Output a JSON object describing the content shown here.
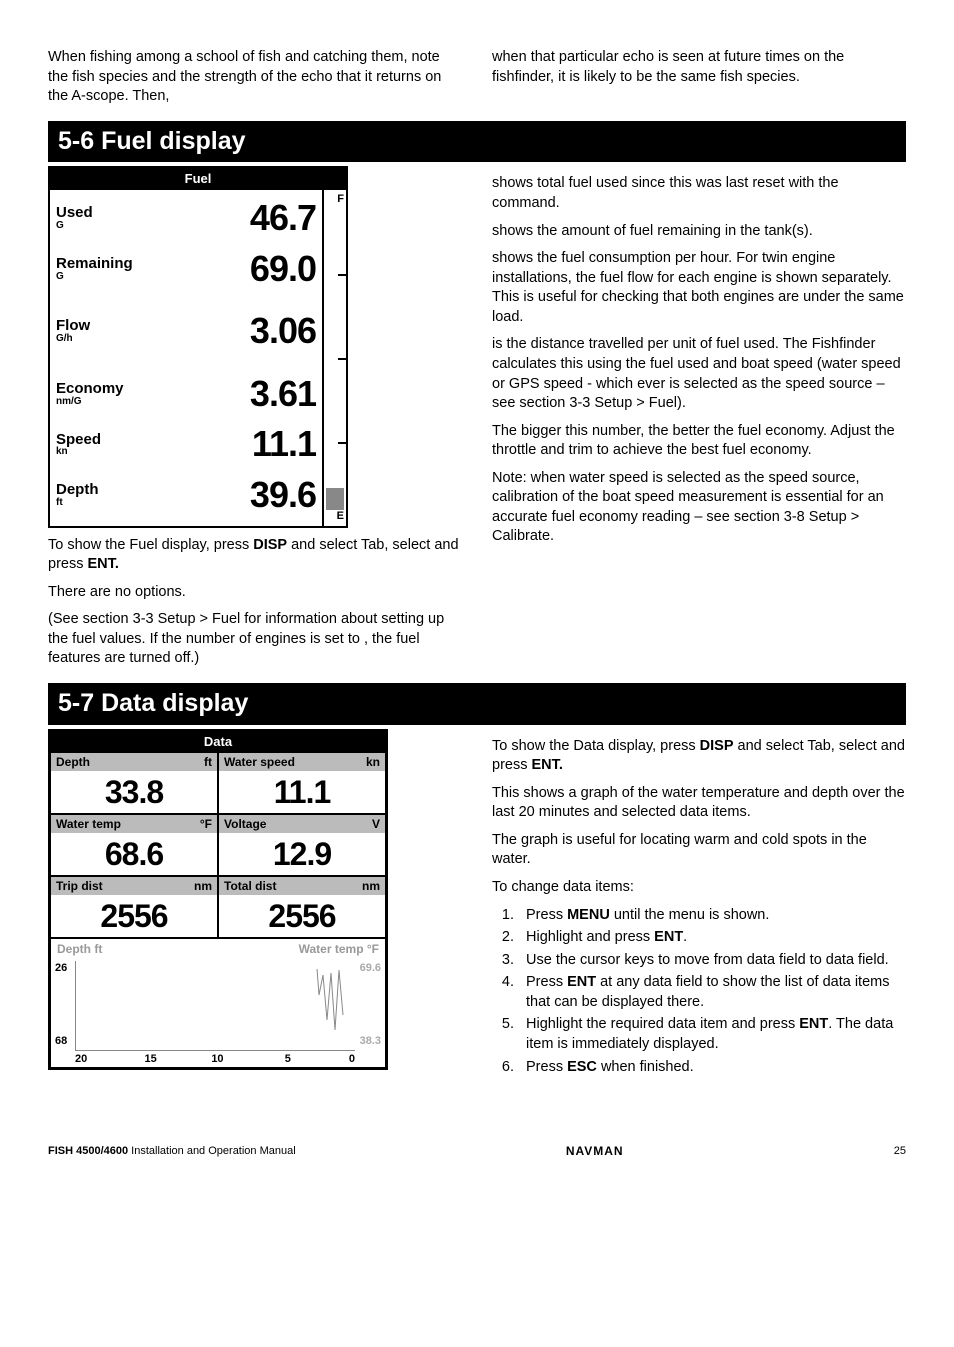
{
  "intro": {
    "left": "When fishing among a school of fish and catching them, note the fish species and the strength of the echo that it returns on the A-scope. Then,",
    "right": "when that particular echo is seen at future times on the fishfinder, it is likely to be the same fish species."
  },
  "section56": {
    "title": "5-6 Fuel display",
    "lcd_title": "Fuel",
    "rows": [
      {
        "label": "Used",
        "unit": "G",
        "value": "46.7"
      },
      {
        "label": "Remaining",
        "unit": "G",
        "value": "69.0"
      },
      {
        "label": "Flow",
        "unit": "G/h",
        "value": "3.06"
      },
      {
        "label": "Economy",
        "unit": "nm/G",
        "value": "3.61"
      },
      {
        "label": "Speed",
        "unit": "kn",
        "value": "11.1"
      },
      {
        "label": "Depth",
        "unit": "ft",
        "value": "39.6"
      }
    ],
    "bar": {
      "top": "F",
      "bottom": "E"
    },
    "left_p1a": "To show the Fuel display, press ",
    "left_p1b": " and select Tab, select and press ",
    "left_p2": "There are no options.",
    "left_p3": "(See section 3-3 Setup > Fuel for information about setting up the fuel values. If the number of engines is set to , the fuel features are turned off.)",
    "disp": "DISP",
    "ent": "ENT.",
    "right_p1": " shows total fuel used since this was last reset with the command.",
    "right_p2": " shows the amount of fuel remaining in the tank(s).",
    "right_p3": " shows the fuel consumption per hour. For twin engine installations, the fuel flow for each engine is shown separately. This is useful for checking that both engines are under the same load.",
    "right_p4": " is the distance travelled per unit of fuel used. The Fishfinder calculates this using the fuel used and boat speed (water speed or GPS speed - which ever is selected as the speed source – see section 3-3 Setup > Fuel).",
    "right_p5": "The bigger this number, the better the fuel economy. Adjust the throttle and trim to achieve the best fuel economy.",
    "right_p6": "Note: when water speed is selected as the speed source, calibration of the boat speed measurement is essential for an accurate fuel economy reading – see section 3-8 Setup > Calibrate."
  },
  "section57": {
    "title": "5-7  Data display",
    "lcd_title": "Data",
    "cells": [
      {
        "label": "Depth",
        "unit": "ft",
        "value": "33.8"
      },
      {
        "label": "Water speed",
        "unit": "kn",
        "value": "11.1"
      },
      {
        "label": "Water temp",
        "unit": "°F",
        "value": "68.6"
      },
      {
        "label": "Voltage",
        "unit": "V",
        "value": "12.9"
      },
      {
        "label": "Trip dist",
        "unit": "nm",
        "value": "2556"
      },
      {
        "label": "Total dist",
        "unit": "nm",
        "value": "2556"
      }
    ],
    "graph": {
      "left_label": "Depth ft",
      "right_label": "Water temp °F",
      "y_left": [
        "26",
        "68"
      ],
      "y_right": [
        "69.6",
        "38.3"
      ],
      "x": [
        "20",
        "15",
        "10",
        "5",
        "0"
      ]
    },
    "right_p1a": "To show the Data display, press ",
    "right_p1b": " and select Tab, select and press ",
    "right_p2": "This shows a graph of the water temperature and depth over the last 20 minutes and selected data items.",
    "right_p3": "The graph is useful for locating warm and cold spots in the water.",
    "right_p4": "To change data items:",
    "steps": [
      {
        "pre": "Press ",
        "b": "MENU",
        "post": " until the menu is shown."
      },
      {
        "pre": "Highlight and press ",
        "b": "ENT",
        "post": "."
      },
      {
        "pre": "Use the cursor keys to move from data field to data field.",
        "b": "",
        "post": ""
      },
      {
        "pre": "Press ",
        "b": "ENT",
        "post": " at any data field to show the list of data items that can be displayed there."
      },
      {
        "pre": "Highlight the required data item and press ",
        "b": "ENT",
        "post": ". The data item is immediately displayed."
      },
      {
        "pre": "Press ",
        "b": "ESC",
        "post": " when finished."
      }
    ],
    "disp": "DISP",
    "ent": "ENT."
  },
  "footer": {
    "left_bold": "FISH 4500/4600",
    "left_rest": " Installation and Operation Manual",
    "mid": "NAVMAN",
    "page": "25"
  }
}
